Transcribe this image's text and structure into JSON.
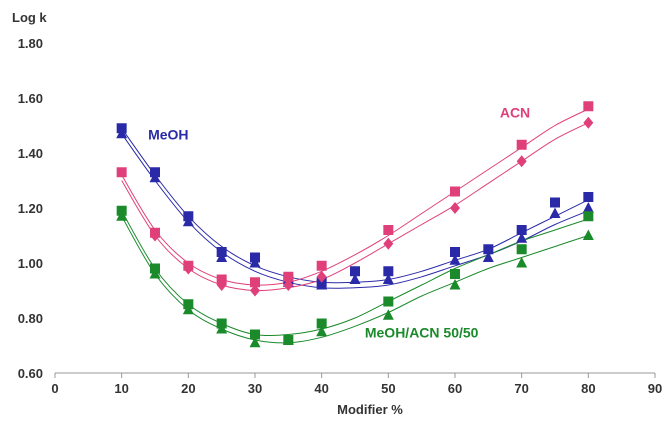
{
  "chart_data": {
    "type": "scatter",
    "title": "",
    "xlabel": "Modifier %",
    "ylabel": "Log k",
    "xlim": [
      0,
      90
    ],
    "ylim": [
      0.6,
      1.8
    ],
    "xticks": [
      "0",
      "10",
      "20",
      "30",
      "40",
      "50",
      "60",
      "70",
      "80",
      "90"
    ],
    "yticks": [
      "0.60",
      "0.80",
      "1.00",
      "1.20",
      "1.40",
      "1.60",
      "1.80"
    ],
    "grid": false,
    "legend": "none",
    "annotations": [
      {
        "text": "MeOH",
        "x": 17,
        "y": 1.45,
        "color": "#2a2aa8"
      },
      {
        "text": "ACN",
        "x": 69,
        "y": 1.53,
        "color": "#e0407a"
      },
      {
        "text": "MeOH/ACN 50/50",
        "x": 55,
        "y": 0.73,
        "color": "#1a8a2a"
      }
    ],
    "series": [
      {
        "marker": "square",
        "color": "#2a2aa8",
        "points": [
          [
            10,
            1.49
          ],
          [
            15,
            1.33
          ],
          [
            20,
            1.17
          ],
          [
            25,
            1.04
          ],
          [
            30,
            1.02
          ],
          [
            35,
            0.94
          ],
          [
            40,
            0.93
          ],
          [
            45,
            0.97
          ],
          [
            50,
            0.97
          ],
          [
            60,
            1.04
          ],
          [
            65,
            1.05
          ],
          [
            70,
            1.12
          ],
          [
            75,
            1.22
          ],
          [
            80,
            1.24
          ]
        ],
        "curve": [
          [
            10,
            1.49
          ],
          [
            15,
            1.32
          ],
          [
            20,
            1.17
          ],
          [
            25,
            1.06
          ],
          [
            30,
            0.99
          ],
          [
            35,
            0.95
          ],
          [
            40,
            0.93
          ],
          [
            45,
            0.93
          ],
          [
            50,
            0.94
          ],
          [
            55,
            0.97
          ],
          [
            60,
            1.01
          ],
          [
            65,
            1.05
          ],
          [
            70,
            1.11
          ],
          [
            75,
            1.17
          ],
          [
            80,
            1.23
          ]
        ]
      },
      {
        "marker": "triangle",
        "color": "#2a2aa8",
        "points": [
          [
            10,
            1.47
          ],
          [
            15,
            1.31
          ],
          [
            20,
            1.15
          ],
          [
            25,
            1.02
          ],
          [
            30,
            1.0
          ],
          [
            35,
            0.93
          ],
          [
            40,
            0.92
          ],
          [
            45,
            0.94
          ],
          [
            50,
            0.94
          ],
          [
            60,
            1.01
          ],
          [
            65,
            1.02
          ],
          [
            70,
            1.09
          ],
          [
            75,
            1.18
          ],
          [
            80,
            1.2
          ]
        ],
        "curve": [
          [
            10,
            1.47
          ],
          [
            15,
            1.3
          ],
          [
            20,
            1.15
          ],
          [
            25,
            1.04
          ],
          [
            30,
            0.97
          ],
          [
            35,
            0.93
          ],
          [
            40,
            0.91
          ],
          [
            45,
            0.91
          ],
          [
            50,
            0.92
          ],
          [
            55,
            0.95
          ],
          [
            60,
            0.99
          ],
          [
            65,
            1.03
          ],
          [
            70,
            1.08
          ],
          [
            75,
            1.14
          ],
          [
            80,
            1.19
          ]
        ]
      },
      {
        "marker": "square",
        "color": "#e0407a",
        "points": [
          [
            10,
            1.33
          ],
          [
            15,
            1.11
          ],
          [
            20,
            0.99
          ],
          [
            25,
            0.94
          ],
          [
            30,
            0.93
          ],
          [
            35,
            0.95
          ],
          [
            40,
            0.99
          ],
          [
            50,
            1.12
          ],
          [
            60,
            1.26
          ],
          [
            70,
            1.43
          ],
          [
            80,
            1.57
          ]
        ],
        "curve": [
          [
            10,
            1.32
          ],
          [
            15,
            1.12
          ],
          [
            20,
            1.0
          ],
          [
            25,
            0.94
          ],
          [
            30,
            0.92
          ],
          [
            35,
            0.93
          ],
          [
            40,
            0.97
          ],
          [
            45,
            1.03
          ],
          [
            50,
            1.1
          ],
          [
            55,
            1.18
          ],
          [
            60,
            1.26
          ],
          [
            65,
            1.34
          ],
          [
            70,
            1.42
          ],
          [
            75,
            1.5
          ],
          [
            80,
            1.56
          ]
        ]
      },
      {
        "marker": "diamond",
        "color": "#e0407a",
        "points": [
          [
            15,
            1.1
          ],
          [
            20,
            0.98
          ],
          [
            25,
            0.92
          ],
          [
            30,
            0.9
          ],
          [
            35,
            0.92
          ],
          [
            40,
            0.95
          ],
          [
            50,
            1.07
          ],
          [
            60,
            1.2
          ],
          [
            70,
            1.37
          ],
          [
            80,
            1.51
          ]
        ],
        "curve": [
          [
            10,
            1.3
          ],
          [
            15,
            1.1
          ],
          [
            20,
            0.98
          ],
          [
            25,
            0.92
          ],
          [
            30,
            0.9
          ],
          [
            35,
            0.91
          ],
          [
            40,
            0.94
          ],
          [
            45,
            1.0
          ],
          [
            50,
            1.07
          ],
          [
            55,
            1.14
          ],
          [
            60,
            1.21
          ],
          [
            65,
            1.29
          ],
          [
            70,
            1.37
          ],
          [
            75,
            1.45
          ],
          [
            80,
            1.51
          ]
        ]
      },
      {
        "marker": "square",
        "color": "#1a8a2a",
        "points": [
          [
            10,
            1.19
          ],
          [
            15,
            0.98
          ],
          [
            20,
            0.85
          ],
          [
            25,
            0.78
          ],
          [
            30,
            0.74
          ],
          [
            35,
            0.72
          ],
          [
            40,
            0.78
          ],
          [
            50,
            0.86
          ],
          [
            60,
            0.96
          ],
          [
            70,
            1.05
          ],
          [
            80,
            1.17
          ]
        ],
        "curve": [
          [
            10,
            1.19
          ],
          [
            15,
            0.98
          ],
          [
            20,
            0.85
          ],
          [
            25,
            0.78
          ],
          [
            30,
            0.74
          ],
          [
            35,
            0.74
          ],
          [
            40,
            0.76
          ],
          [
            45,
            0.8
          ],
          [
            50,
            0.86
          ],
          [
            55,
            0.92
          ],
          [
            60,
            0.98
          ],
          [
            65,
            1.03
          ],
          [
            70,
            1.08
          ],
          [
            75,
            1.12
          ],
          [
            80,
            1.16
          ]
        ]
      },
      {
        "marker": "triangle",
        "color": "#1a8a2a",
        "points": [
          [
            10,
            1.17
          ],
          [
            15,
            0.96
          ],
          [
            20,
            0.83
          ],
          [
            25,
            0.76
          ],
          [
            30,
            0.71
          ],
          [
            35,
            0.72
          ],
          [
            40,
            0.75
          ],
          [
            50,
            0.81
          ],
          [
            60,
            0.92
          ],
          [
            70,
            1.0
          ],
          [
            80,
            1.1
          ]
        ],
        "curve": [
          [
            10,
            1.17
          ],
          [
            15,
            0.96
          ],
          [
            20,
            0.83
          ],
          [
            25,
            0.76
          ],
          [
            30,
            0.72
          ],
          [
            35,
            0.71
          ],
          [
            40,
            0.73
          ],
          [
            45,
            0.77
          ],
          [
            50,
            0.82
          ],
          [
            55,
            0.88
          ],
          [
            60,
            0.93
          ],
          [
            65,
            0.98
          ],
          [
            70,
            1.02
          ],
          [
            75,
            1.06
          ],
          [
            80,
            1.1
          ]
        ]
      }
    ]
  }
}
